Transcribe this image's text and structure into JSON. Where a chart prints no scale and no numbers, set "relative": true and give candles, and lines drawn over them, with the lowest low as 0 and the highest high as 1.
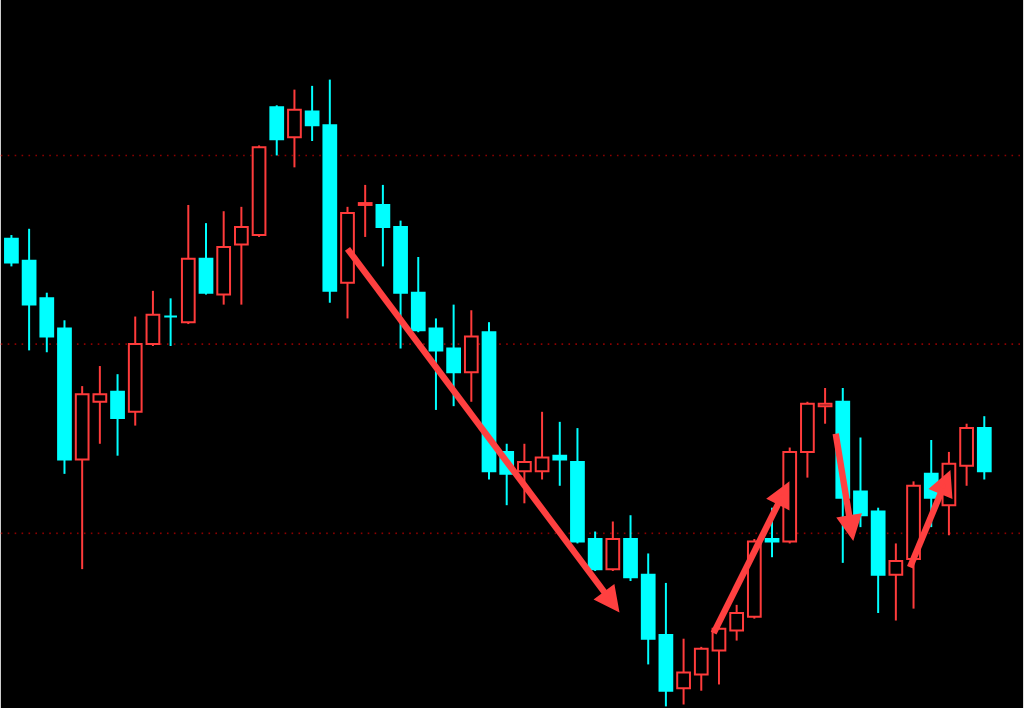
{
  "chart_data": {
    "type": "candlestick",
    "relative": true,
    "categories": [
      null,
      null,
      null,
      null,
      null,
      null,
      null,
      null,
      null,
      null,
      null,
      null,
      null,
      null,
      null,
      null,
      null,
      null,
      null,
      null,
      null,
      null,
      null,
      null,
      null,
      null,
      null,
      null,
      null,
      null,
      null,
      null,
      null,
      null,
      null,
      null,
      null,
      null,
      null,
      null,
      null,
      null,
      null,
      null,
      null,
      null,
      null,
      null,
      null,
      null,
      null,
      null,
      null,
      null,
      null,
      null
    ],
    "ohlc": [
      [
        0.746,
        0.752,
        0.702,
        0.708
      ],
      [
        0.711,
        0.762,
        0.568,
        0.641
      ],
      [
        0.651,
        0.66,
        0.565,
        0.59
      ],
      [
        0.603,
        0.616,
        0.371,
        0.394
      ],
      [
        0.394,
        0.511,
        0.219,
        0.498
      ],
      [
        0.486,
        0.543,
        0.419,
        0.498
      ],
      [
        0.502,
        0.53,
        0.4,
        0.46
      ],
      [
        0.47,
        0.622,
        0.448,
        0.578
      ],
      [
        0.578,
        0.663,
        0.575,
        0.625
      ],
      [
        0.622,
        0.651,
        0.575,
        0.622
      ],
      [
        0.613,
        0.8,
        0.61,
        0.714
      ],
      [
        0.714,
        0.771,
        0.657,
        0.66
      ],
      [
        0.657,
        0.79,
        0.641,
        0.733
      ],
      [
        0.737,
        0.797,
        0.641,
        0.765
      ],
      [
        0.752,
        0.895,
        0.749,
        0.892
      ],
      [
        0.956,
        0.959,
        0.879,
        0.905
      ],
      [
        0.908,
        0.984,
        0.86,
        0.952
      ],
      [
        0.949,
        0.99,
        0.902,
        0.927
      ],
      [
        0.927,
        1.0,
        0.644,
        0.663
      ],
      [
        0.676,
        0.797,
        0.619,
        0.787
      ],
      [
        0.8,
        0.832,
        0.749,
        0.803
      ],
      [
        0.8,
        0.832,
        0.702,
        0.765
      ],
      [
        0.765,
        0.775,
        0.571,
        0.66
      ],
      [
        0.66,
        0.717,
        0.597,
        0.6
      ],
      [
        0.603,
        0.619,
        0.473,
        0.568
      ],
      [
        0.571,
        0.641,
        0.479,
        0.533
      ],
      [
        0.533,
        0.632,
        0.486,
        0.59
      ],
      [
        0.597,
        0.613,
        0.362,
        0.375
      ],
      [
        0.406,
        0.419,
        0.321,
        0.371
      ],
      [
        0.375,
        0.419,
        0.324,
        0.39
      ],
      [
        0.375,
        0.47,
        0.362,
        0.397
      ],
      [
        0.4,
        0.454,
        0.352,
        0.394
      ],
      [
        0.39,
        0.444,
        0.26,
        0.263
      ],
      [
        0.267,
        0.279,
        0.216,
        0.219
      ],
      [
        0.219,
        0.295,
        0.216,
        0.267
      ],
      [
        0.267,
        0.305,
        0.2,
        0.206
      ],
      [
        0.21,
        0.244,
        0.067,
        0.108
      ],
      [
        0.114,
        0.197,
        0.0,
        0.025
      ],
      [
        0.029,
        0.108,
        0.003,
        0.054
      ],
      [
        0.051,
        0.095,
        0.025,
        0.092
      ],
      [
        0.089,
        0.14,
        0.035,
        0.124
      ],
      [
        0.121,
        0.162,
        0.105,
        0.149
      ],
      [
        0.143,
        0.267,
        0.14,
        0.263
      ],
      [
        0.267,
        0.317,
        0.238,
        0.263
      ],
      [
        0.263,
        0.413,
        0.26,
        0.406
      ],
      [
        0.406,
        0.486,
        0.365,
        0.483
      ],
      [
        0.479,
        0.508,
        0.451,
        0.483
      ],
      [
        0.486,
        0.508,
        0.229,
        0.333
      ],
      [
        0.343,
        0.429,
        0.286,
        0.305
      ],
      [
        0.311,
        0.317,
        0.149,
        0.21
      ],
      [
        0.21,
        0.26,
        0.137,
        0.232
      ],
      [
        0.235,
        0.359,
        0.156,
        0.352
      ],
      [
        0.371,
        0.425,
        0.286,
        0.333
      ],
      [
        0.321,
        0.406,
        0.273,
        0.387
      ],
      [
        0.384,
        0.451,
        0.352,
        0.444
      ],
      [
        0.444,
        0.463,
        0.362,
        0.375
      ]
    ],
    "colors": [
      "#00ffff",
      "#00ffff",
      "#00ffff",
      "#00ffff",
      "#ff3b3b",
      "#ff3b3b",
      "#00ffff",
      "#ff3b3b",
      "#ff3b3b",
      "#00ffff",
      "#ff3b3b",
      "#00ffff",
      "#ff3b3b",
      "#ff3b3b",
      "#ff3b3b",
      "#00ffff",
      "#ff3b3b",
      "#00ffff",
      "#00ffff",
      "#ff3b3b",
      "#ff3b3b",
      "#00ffff",
      "#00ffff",
      "#00ffff",
      "#00ffff",
      "#00ffff",
      "#ff3b3b",
      "#00ffff",
      "#00ffff",
      "#ff3b3b",
      "#ff3b3b",
      "#00ffff",
      "#00ffff",
      "#00ffff",
      "#ff3b3b",
      "#00ffff",
      "#00ffff",
      "#00ffff",
      "#ff3b3b",
      "#ff3b3b",
      "#ff3b3b",
      "#ff3b3b",
      "#ff3b3b",
      "#00ffff",
      "#ff3b3b",
      "#ff3b3b",
      "#ff3b3b",
      "#00ffff",
      "#00ffff",
      "#00ffff",
      "#ff3b3b",
      "#ff3b3b",
      "#00ffff",
      "#ff3b3b",
      "#ff3b3b",
      "#00ffff"
    ],
    "ref_lines": [
      {
        "axis": "y",
        "value": 0.879,
        "color": "#8b0000",
        "line_style": "dotted"
      },
      {
        "axis": "y",
        "value": 0.578,
        "color": "#8b0000",
        "line_style": "dotted"
      },
      {
        "axis": "y",
        "value": 0.276,
        "color": "#8b0000",
        "line_style": "dotted"
      }
    ]
  }
}
